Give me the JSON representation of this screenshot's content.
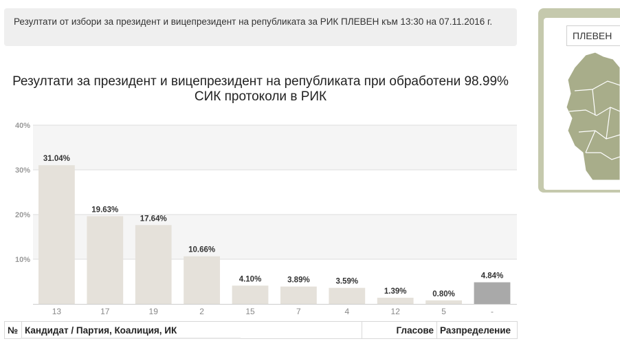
{
  "info_bar": {
    "text": "Резултати от избори за президент и вицепрезидент на републиката за РИК ПЛЕВЕН към 13:30 на 07.11.2016 г."
  },
  "region_select": {
    "value": "ПЛЕВЕН"
  },
  "colors": {
    "bar": "#e5e1da",
    "bar_other": "#a9a9a9",
    "grid_band": "#f5f5f5",
    "grid_line": "#dddddd",
    "map_fill": "#a8ad8a",
    "map_panel": "#c5c9ad"
  },
  "chart_data": {
    "type": "bar",
    "title": "Резултати за президент и вицепрезидент на републиката при обработени 98.99% СИК протоколи в РИК",
    "categories": [
      "13",
      "17",
      "19",
      "2",
      "15",
      "7",
      "4",
      "12",
      "5",
      "-"
    ],
    "values": [
      31.04,
      19.63,
      17.64,
      10.66,
      4.1,
      3.89,
      3.59,
      1.39,
      0.8,
      4.84
    ],
    "data_labels": [
      "31.04%",
      "19.63%",
      "17.64%",
      "10.66%",
      "4.10%",
      "3.89%",
      "3.59%",
      "1.39%",
      "0.80%",
      "4.84%"
    ],
    "highlighted_category": "-",
    "y_ticks": [
      {
        "value": 10,
        "label": "10%"
      },
      {
        "value": 20,
        "label": "20%"
      },
      {
        "value": 30,
        "label": "30%"
      },
      {
        "value": 40,
        "label": "40%"
      }
    ],
    "ylim": [
      0,
      40
    ],
    "xlabel": "",
    "ylabel": "",
    "grid": true
  },
  "table": {
    "headers": {
      "num": "№",
      "candidate": "Кандидат / Партия, Коалиция, ИК",
      "votes": "Гласове",
      "distribution": "Разпределение"
    }
  }
}
